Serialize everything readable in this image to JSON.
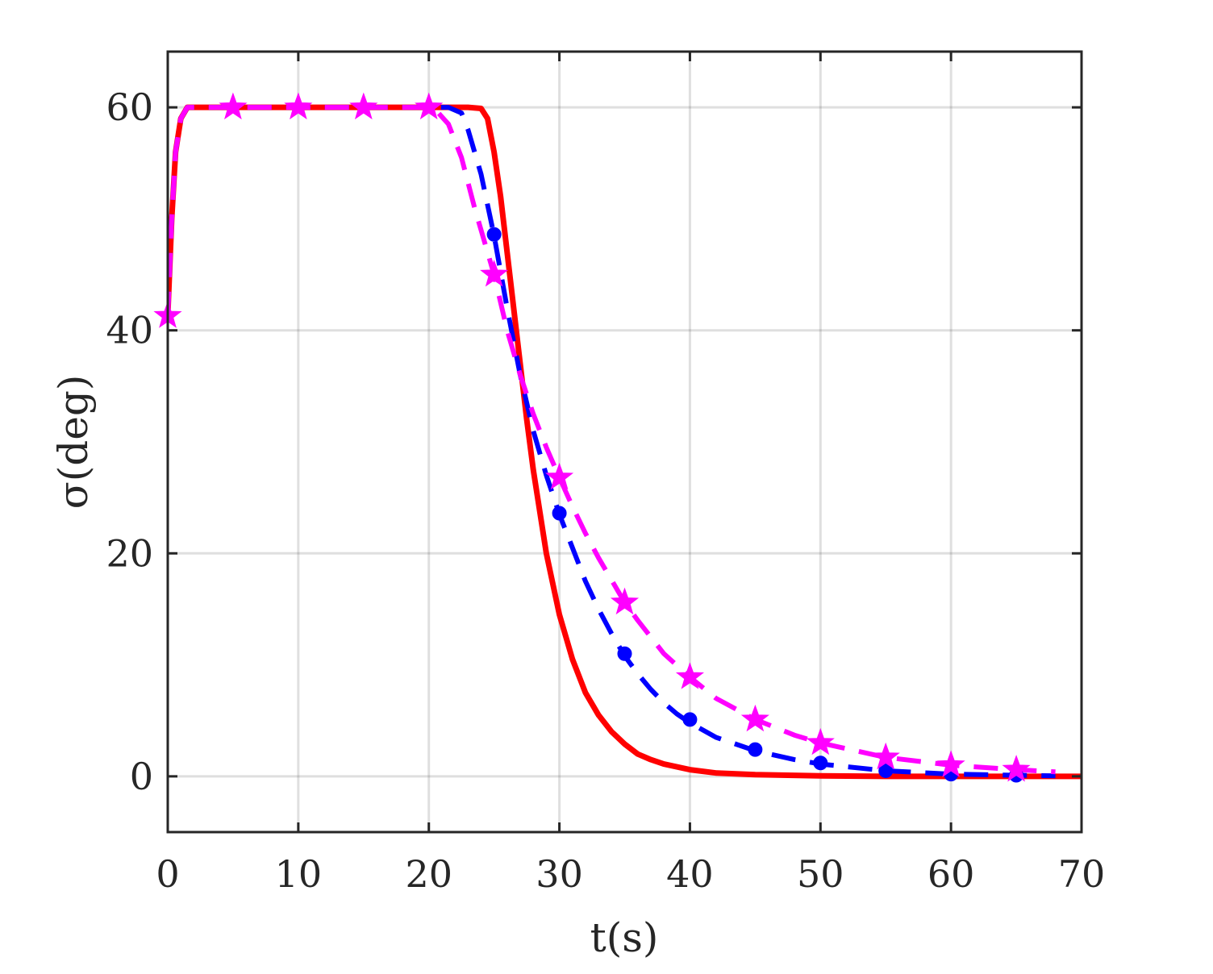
{
  "chart_data": {
    "type": "line",
    "xlabel": "t(s)",
    "ylabel": "σ(deg)",
    "xlim": [
      0,
      70
    ],
    "ylim": [
      -5,
      65
    ],
    "xticks": [
      0,
      10,
      20,
      30,
      40,
      50,
      60,
      70
    ],
    "yticks": [
      0,
      20,
      40,
      60
    ],
    "grid": true,
    "legend": "none",
    "series": [
      {
        "color": "#ff0000",
        "style": "solid",
        "marker": "none",
        "points": [
          [
            0,
            41.3
          ],
          [
            0.3,
            50
          ],
          [
            0.6,
            56
          ],
          [
            1,
            59
          ],
          [
            1.5,
            60
          ],
          [
            5,
            60
          ],
          [
            10,
            60
          ],
          [
            15,
            60
          ],
          [
            20,
            60
          ],
          [
            23,
            60
          ],
          [
            24,
            59.9
          ],
          [
            24.5,
            59
          ],
          [
            25,
            56
          ],
          [
            25.5,
            52
          ],
          [
            26,
            47
          ],
          [
            26.5,
            42
          ],
          [
            27,
            37
          ],
          [
            27.5,
            32
          ],
          [
            28,
            27.5
          ],
          [
            29,
            20
          ],
          [
            30,
            14.5
          ],
          [
            31,
            10.5
          ],
          [
            32,
            7.5
          ],
          [
            33,
            5.5
          ],
          [
            34,
            4
          ],
          [
            35,
            2.9
          ],
          [
            36,
            2
          ],
          [
            37,
            1.5
          ],
          [
            38,
            1.1
          ],
          [
            40,
            0.6
          ],
          [
            42,
            0.3
          ],
          [
            45,
            0.15
          ],
          [
            50,
            0.05
          ],
          [
            55,
            0
          ],
          [
            60,
            0
          ],
          [
            70,
            0
          ]
        ]
      },
      {
        "color": "#0000ff",
        "style": "dashed",
        "marker": "circle",
        "points": [
          [
            0,
            41.3
          ],
          [
            0.3,
            50
          ],
          [
            0.6,
            56
          ],
          [
            1,
            59
          ],
          [
            1.5,
            60
          ],
          [
            5,
            60
          ],
          [
            10,
            60
          ],
          [
            15,
            60
          ],
          [
            20,
            60
          ],
          [
            21.5,
            60
          ],
          [
            22.5,
            59.5
          ],
          [
            23,
            58
          ],
          [
            24,
            54
          ],
          [
            25,
            48.5
          ],
          [
            26,
            42
          ],
          [
            27,
            36
          ],
          [
            28,
            31
          ],
          [
            29,
            27
          ],
          [
            30,
            23.5
          ],
          [
            31,
            20.5
          ],
          [
            32,
            17.5
          ],
          [
            33,
            15
          ],
          [
            34,
            12.8
          ],
          [
            35,
            10.8
          ],
          [
            36,
            9.2
          ],
          [
            37,
            7.8
          ],
          [
            38,
            6.6
          ],
          [
            39,
            5.6
          ],
          [
            40,
            4.8
          ],
          [
            42,
            3.5
          ],
          [
            45,
            2.3
          ],
          [
            48,
            1.5
          ],
          [
            50,
            1.1
          ],
          [
            55,
            0.5
          ],
          [
            60,
            0.2
          ],
          [
            65,
            0.1
          ],
          [
            68,
            0.05
          ]
        ],
        "markers": [
          [
            25,
            48.6
          ],
          [
            30,
            23.6
          ],
          [
            35,
            11
          ],
          [
            40,
            5.1
          ],
          [
            45,
            2.4
          ],
          [
            50,
            1.2
          ],
          [
            55,
            0.5
          ],
          [
            60,
            0.2
          ],
          [
            65,
            0.1
          ]
        ]
      },
      {
        "color": "#ff00ff",
        "style": "dashed",
        "marker": "star",
        "points": [
          [
            0,
            41.3
          ],
          [
            0.3,
            50
          ],
          [
            0.6,
            56
          ],
          [
            1,
            59
          ],
          [
            1.5,
            60
          ],
          [
            5,
            60
          ],
          [
            10,
            60
          ],
          [
            15,
            60
          ],
          [
            20,
            60
          ],
          [
            20.5,
            59.8
          ],
          [
            21.5,
            58.5
          ],
          [
            22.5,
            55.5
          ],
          [
            23.5,
            51
          ],
          [
            25,
            45
          ],
          [
            26,
            40
          ],
          [
            27,
            36
          ],
          [
            28,
            32.5
          ],
          [
            29,
            29.5
          ],
          [
            30,
            26.8
          ],
          [
            31,
            24.2
          ],
          [
            32,
            21.8
          ],
          [
            33,
            19.6
          ],
          [
            34,
            17.6
          ],
          [
            35,
            15.6
          ],
          [
            36,
            14
          ],
          [
            37,
            12.5
          ],
          [
            38,
            11
          ],
          [
            40,
            8.9
          ],
          [
            42,
            7
          ],
          [
            45,
            5.1
          ],
          [
            48,
            3.7
          ],
          [
            50,
            3
          ],
          [
            55,
            1.7
          ],
          [
            60,
            1
          ],
          [
            65,
            0.6
          ],
          [
            68,
            0.4
          ]
        ],
        "markers": [
          [
            0,
            41.3
          ],
          [
            5,
            60
          ],
          [
            10,
            60
          ],
          [
            15,
            60
          ],
          [
            20,
            60
          ],
          [
            25,
            45
          ],
          [
            30,
            26.8
          ],
          [
            35,
            15.6
          ],
          [
            40,
            8.9
          ],
          [
            45,
            5.1
          ],
          [
            50,
            3
          ],
          [
            55,
            1.7
          ],
          [
            60,
            1
          ],
          [
            65,
            0.6
          ]
        ]
      }
    ]
  }
}
